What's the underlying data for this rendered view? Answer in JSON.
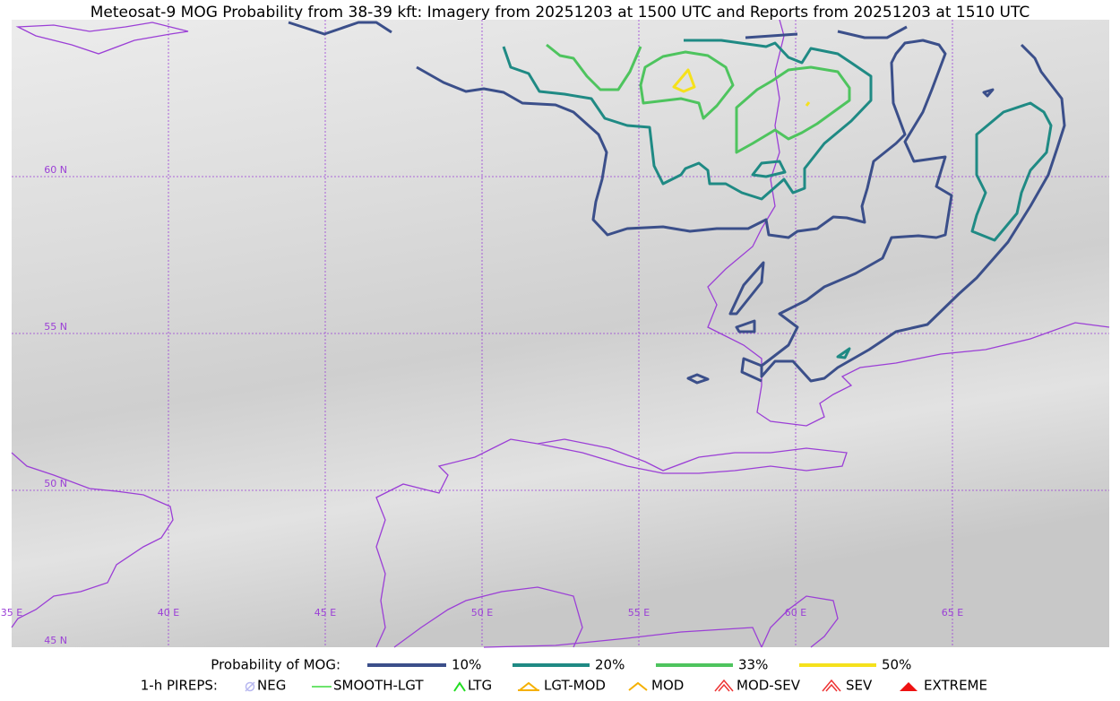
{
  "title": "Meteosat-9 MOG Probability from 38-39 kft: Imagery from 20251203 at 1500 UTC and Reports from 20251203 at 1510 UTC",
  "map": {
    "lat_labels": [
      "60 N",
      "55 N",
      "50 N",
      "45 N"
    ],
    "lon_labels": [
      "35 E",
      "40 E",
      "45 E",
      "50 E",
      "55 E",
      "60 E",
      "65 E"
    ]
  },
  "legend": {
    "title": "Probability of MOG:",
    "items": [
      "10%",
      "20%",
      "33%",
      "50%"
    ]
  },
  "pireps": {
    "title": "1-h PIREPS:",
    "items": [
      "NEG",
      "SMOOTH-LGT",
      "LTG",
      "LGT-MOD",
      "MOD",
      "MOD-SEV",
      "SEV",
      "EXTREME"
    ]
  }
}
